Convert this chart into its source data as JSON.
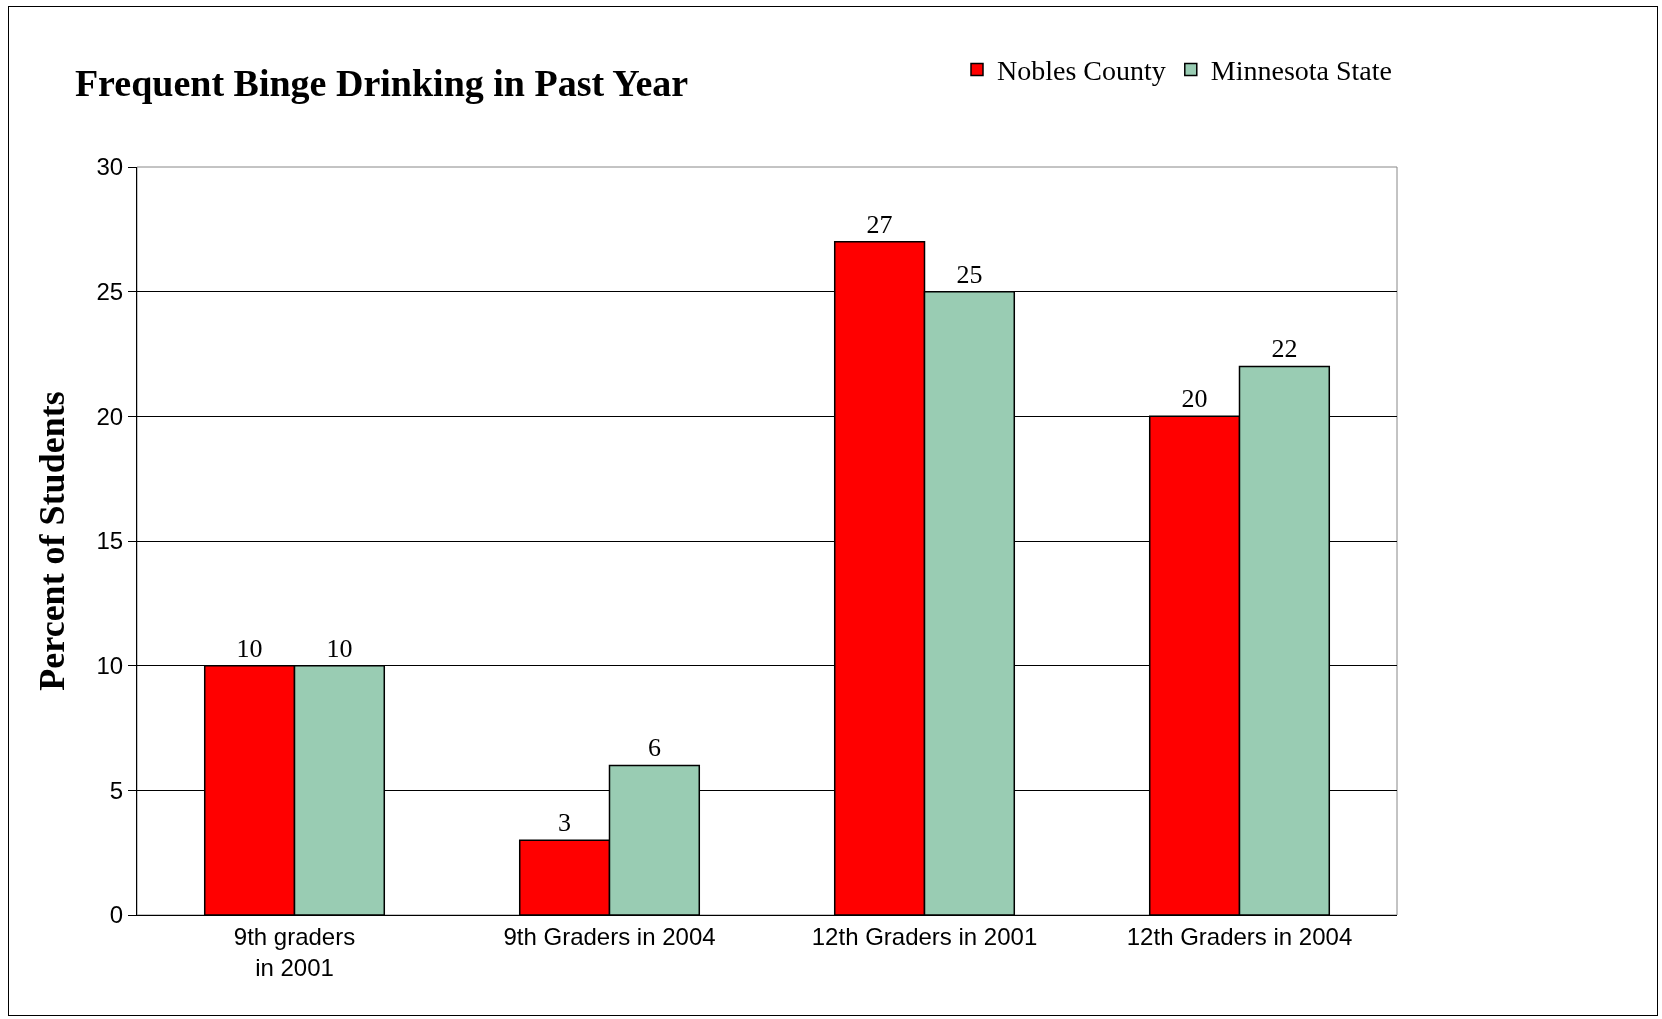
{
  "chart_data": {
    "type": "bar",
    "title": "Frequent Binge Drinking in Past Year",
    "ylabel": "Percent of Students",
    "categories": [
      "9th graders\nin 2001",
      "9th Graders in 2004",
      "12th Graders in 2001",
      "12th Graders in 2004"
    ],
    "series": [
      {
        "name": "Nobles County",
        "color": "#ff0000",
        "values": [
          10,
          3,
          27,
          20
        ]
      },
      {
        "name": "Minnesota State",
        "color": "#99ccb3",
        "values": [
          10,
          6,
          25,
          22
        ]
      }
    ],
    "ylim": [
      0,
      30
    ],
    "yticks": [
      0,
      5,
      10,
      15,
      20,
      25,
      30
    ],
    "grid": "y",
    "legend": "top right",
    "data_labels": true
  }
}
